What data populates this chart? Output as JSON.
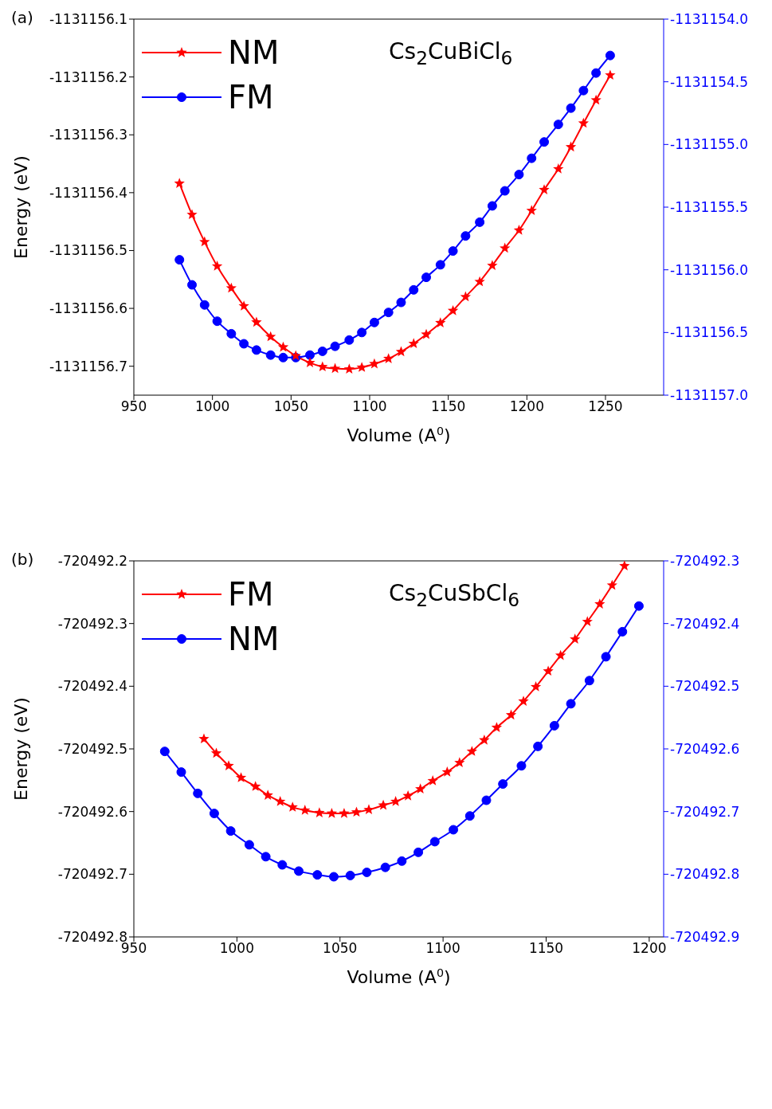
{
  "chart_data": [
    {
      "type": "line",
      "title": "(a)",
      "xlabel": "Volume (A$^{0}$)",
      "ylabel": "Energy (eV)",
      "annotations": [
        "Cs$_{2}$CuBiCl$_{6}$"
      ],
      "xlim": [
        950,
        1287
      ],
      "xticks": [
        950,
        1000,
        1050,
        1100,
        1150,
        1200,
        1250
      ],
      "ylim": [
        -1131156.75,
        -1131156.1
      ],
      "yticks": [
        -1131156.1,
        -1131156.2,
        -1131156.3,
        -1131156.4,
        -1131156.5,
        -1131156.6,
        -1131156.7
      ],
      "y2lim": [
        -1131157,
        -1131154
      ],
      "y2ticks": [
        {
          "value": -1131154,
          "label": "-1131154.0"
        },
        -1131154.5,
        {
          "value": -1131155,
          "label": "-1131155.0"
        },
        -1131155.5,
        {
          "value": -1131156,
          "label": "-1131156.0"
        },
        -1131156.5,
        {
          "value": -1131157,
          "label": "-1131157.0"
        }
      ],
      "legend": "top left",
      "line_style": "solid",
      "series": [
        {
          "name": "NM",
          "color": "#ff0000",
          "marker": "star",
          "x": [
            979,
            987,
            995,
            1003,
            1012,
            1020,
            1028,
            1037,
            1045,
            1053,
            1062,
            1070,
            1078,
            1087,
            1095,
            1103,
            1112,
            1120,
            1128,
            1136,
            1145,
            1153,
            1161,
            1170,
            1178,
            1186,
            1195,
            1203,
            1211,
            1220,
            1228,
            1236,
            1244,
            1253
          ],
          "values": [
            -1131156.384,
            -1131156.438,
            -1131156.485,
            -1131156.527,
            -1131156.565,
            -1131156.596,
            -1131156.624,
            -1131156.649,
            -1131156.667,
            -1131156.682,
            -1131156.694,
            -1131156.701,
            -1131156.704,
            -1131156.705,
            -1131156.702,
            -1131156.696,
            -1131156.687,
            -1131156.675,
            -1131156.661,
            -1131156.645,
            -1131156.625,
            -1131156.604,
            -1131156.58,
            -1131156.554,
            -1131156.526,
            -1131156.496,
            -1131156.465,
            -1131156.431,
            -1131156.395,
            -1131156.359,
            -1131156.321,
            -1131156.28,
            -1131156.24,
            -1131156.197
          ]
        },
        {
          "name": "FM",
          "color": "#0000ff",
          "marker": "circle",
          "axis": "y2",
          "x": [
            979,
            987,
            995,
            1003,
            1012,
            1020,
            1028,
            1037,
            1045,
            1053,
            1062,
            1070,
            1078,
            1087,
            1095,
            1103,
            1112,
            1120,
            1128,
            1136,
            1145,
            1153,
            1161,
            1170,
            1178,
            1186,
            1195,
            1203,
            1211,
            1220,
            1228,
            1236,
            1244,
            1253
          ],
          "values": [
            -1131155.92,
            -1131156.12,
            -1131156.28,
            -1131156.41,
            -1131156.51,
            -1131156.59,
            -1131156.64,
            -1131156.68,
            -1131156.7,
            -1131156.7,
            -1131156.68,
            -1131156.65,
            -1131156.61,
            -1131156.56,
            -1131156.5,
            -1131156.42,
            -1131156.34,
            -1131156.26,
            -1131156.16,
            -1131156.06,
            -1131155.96,
            -1131155.85,
            -1131155.73,
            -1131155.62,
            -1131155.49,
            -1131155.37,
            -1131155.24,
            -1131155.11,
            -1131154.98,
            -1131154.84,
            -1131154.71,
            -1131154.57,
            -1131154.43,
            -1131154.29
          ]
        }
      ]
    },
    {
      "type": "line",
      "title": "(b)",
      "xlabel": "Volume (A$^{0}$)",
      "ylabel": "Energy (eV)",
      "annotations": [
        "Cs$_{2}$CuSbCl$_{6}$"
      ],
      "xlim": [
        950,
        1207
      ],
      "xticks": [
        950,
        1000,
        1050,
        1100,
        1150,
        1200
      ],
      "ylim": [
        -720492.8,
        -720492.2
      ],
      "yticks": [
        -720492.2,
        -720492.3,
        -720492.4,
        -720492.5,
        -720492.6,
        -720492.7,
        -720492.8
      ],
      "y2lim": [
        -720492.9,
        -720492.3
      ],
      "y2ticks": [
        -720492.3,
        -720492.4,
        -720492.5,
        -720492.6,
        -720492.7,
        -720492.8,
        -720492.9
      ],
      "legend": "top left",
      "line_style": "solid",
      "series": [
        {
          "name": "FM",
          "color": "#ff0000",
          "marker": "star",
          "x": [
            984,
            990,
            996,
            1002,
            1009,
            1015,
            1021,
            1027,
            1033,
            1040,
            1046,
            1052,
            1058,
            1064,
            1071,
            1077,
            1083,
            1089,
            1095,
            1102,
            1108,
            1114,
            1120,
            1126,
            1133,
            1139,
            1145,
            1151,
            1157,
            1164,
            1170,
            1176,
            1182,
            1188
          ],
          "values": [
            -720492.484,
            -720492.507,
            -720492.527,
            -720492.546,
            -720492.56,
            -720492.574,
            -720492.584,
            -720492.593,
            -720492.598,
            -720492.602,
            -720492.603,
            -720492.603,
            -720492.601,
            -720492.597,
            -720492.59,
            -720492.584,
            -720492.575,
            -720492.564,
            -720492.551,
            -720492.537,
            -720492.522,
            -720492.504,
            -720492.486,
            -720492.466,
            -720492.446,
            -720492.424,
            -720492.401,
            -720492.376,
            -720492.351,
            -720492.325,
            -720492.297,
            -720492.269,
            -720492.239,
            -720492.208
          ]
        },
        {
          "name": "NM",
          "color": "#0000ff",
          "marker": "circle",
          "axis": "y2",
          "x": [
            965,
            973,
            981,
            989,
            997,
            1006,
            1014,
            1022,
            1030,
            1039,
            1047,
            1055,
            1063,
            1072,
            1080,
            1088,
            1096,
            1105,
            1113,
            1121,
            1129,
            1138,
            1146,
            1154,
            1162,
            1171,
            1179,
            1187,
            1195
          ],
          "values": [
            -720492.604,
            -720492.637,
            -720492.671,
            -720492.703,
            -720492.731,
            -720492.753,
            -720492.772,
            -720492.785,
            -720492.795,
            -720492.801,
            -720492.804,
            -720492.802,
            -720492.797,
            -720492.789,
            -720492.779,
            -720492.765,
            -720492.748,
            -720492.729,
            -720492.707,
            -720492.682,
            -720492.656,
            -720492.627,
            -720492.596,
            -720492.563,
            -720492.528,
            -720492.491,
            -720492.453,
            -720492.413,
            -720492.372
          ]
        }
      ]
    }
  ]
}
